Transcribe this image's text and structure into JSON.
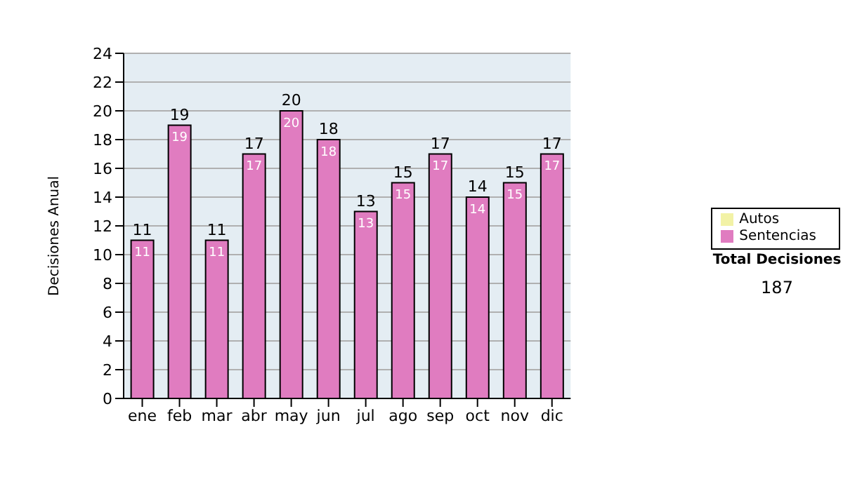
{
  "chart_data": {
    "type": "bar",
    "ylabel": "Decisiones Anual",
    "categories": [
      "ene",
      "feb",
      "mar",
      "abr",
      "may",
      "jun",
      "jul",
      "ago",
      "sep",
      "oct",
      "nov",
      "dic"
    ],
    "series": [
      {
        "name": "Sentencias",
        "color": "#e07cc0",
        "values": [
          11,
          19,
          11,
          17,
          20,
          18,
          13,
          15,
          17,
          14,
          15,
          17
        ]
      },
      {
        "name": "Autos",
        "color": "#f2f2a6",
        "values": [
          null,
          null,
          null,
          null,
          null,
          null,
          null,
          null,
          null,
          null,
          null,
          null
        ]
      }
    ],
    "stacked": true,
    "data_labels": true,
    "totals": [
      "11",
      "19",
      "11",
      "17",
      "20",
      "18",
      "13",
      "15",
      "17",
      "14",
      "15",
      "17"
    ],
    "ylim": [
      0,
      24
    ],
    "yticks": [
      0,
      2,
      4,
      6,
      8,
      10,
      12,
      14,
      16,
      18,
      20,
      22,
      24
    ],
    "grid": "y",
    "legend": "right",
    "annotations": [
      "Total Decisiones",
      "187"
    ]
  }
}
